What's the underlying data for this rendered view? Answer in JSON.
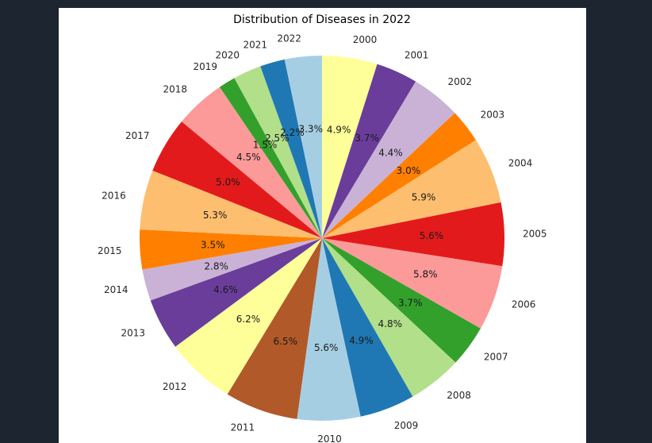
{
  "chart_data": {
    "type": "pie",
    "title": "Distribution of Diseases in 2022",
    "start_angle_deg": 90,
    "direction": "clockwise",
    "categories": [
      "2000",
      "2001",
      "2002",
      "2003",
      "2004",
      "2005",
      "2006",
      "2007",
      "2008",
      "2009",
      "2010",
      "2011",
      "2012",
      "2013",
      "2014",
      "2015",
      "2016",
      "2017",
      "2018",
      "2019",
      "2020",
      "2021",
      "2022"
    ],
    "values": [
      4.9,
      3.7,
      4.4,
      3.0,
      5.9,
      5.6,
      5.8,
      3.7,
      4.8,
      4.9,
      5.6,
      6.5,
      6.2,
      4.6,
      2.8,
      3.5,
      5.3,
      5.0,
      4.5,
      1.5,
      2.5,
      2.2,
      3.3
    ],
    "labels": [
      "4.9%",
      "3.7%",
      "4.4%",
      "3.0%",
      "5.9%",
      "5.6%",
      "5.8%",
      "3.7%",
      "4.8%",
      "4.9%",
      "5.6%",
      "6.5%",
      "6.2%",
      "4.6%",
      "2.8%",
      "3.5%",
      "5.3%",
      "5.0%",
      "4.5%",
      "1.5%",
      "2.5%",
      "2.2%",
      "3.3%"
    ],
    "colors": [
      "#ffff99",
      "#6a3d9a",
      "#cab2d6",
      "#ff7f00",
      "#fdbf6f",
      "#e31a1c",
      "#fb9a99",
      "#33a02c",
      "#b2df8a",
      "#1f78b4",
      "#a6cee3",
      "#b15928",
      "#ffff99",
      "#6a3d9a",
      "#cab2d6",
      "#ff7f00",
      "#fdbf6f",
      "#e31a1c",
      "#fb9a99",
      "#33a02c",
      "#b2df8a",
      "#1f78b4",
      "#a6cee3"
    ]
  }
}
